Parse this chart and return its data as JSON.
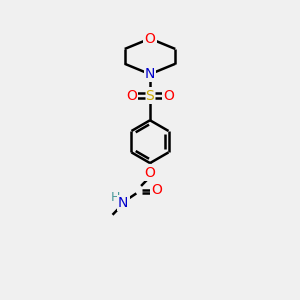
{
  "background_color": "#f0f0f0",
  "atom_colors": {
    "C": "#000000",
    "N": "#0000cc",
    "O": "#ff0000",
    "S": "#ccaa00",
    "H": "#4a9a9a"
  },
  "bond_color": "#000000",
  "bond_width": 1.8,
  "font_size_atoms": 10,
  "font_size_small": 9
}
